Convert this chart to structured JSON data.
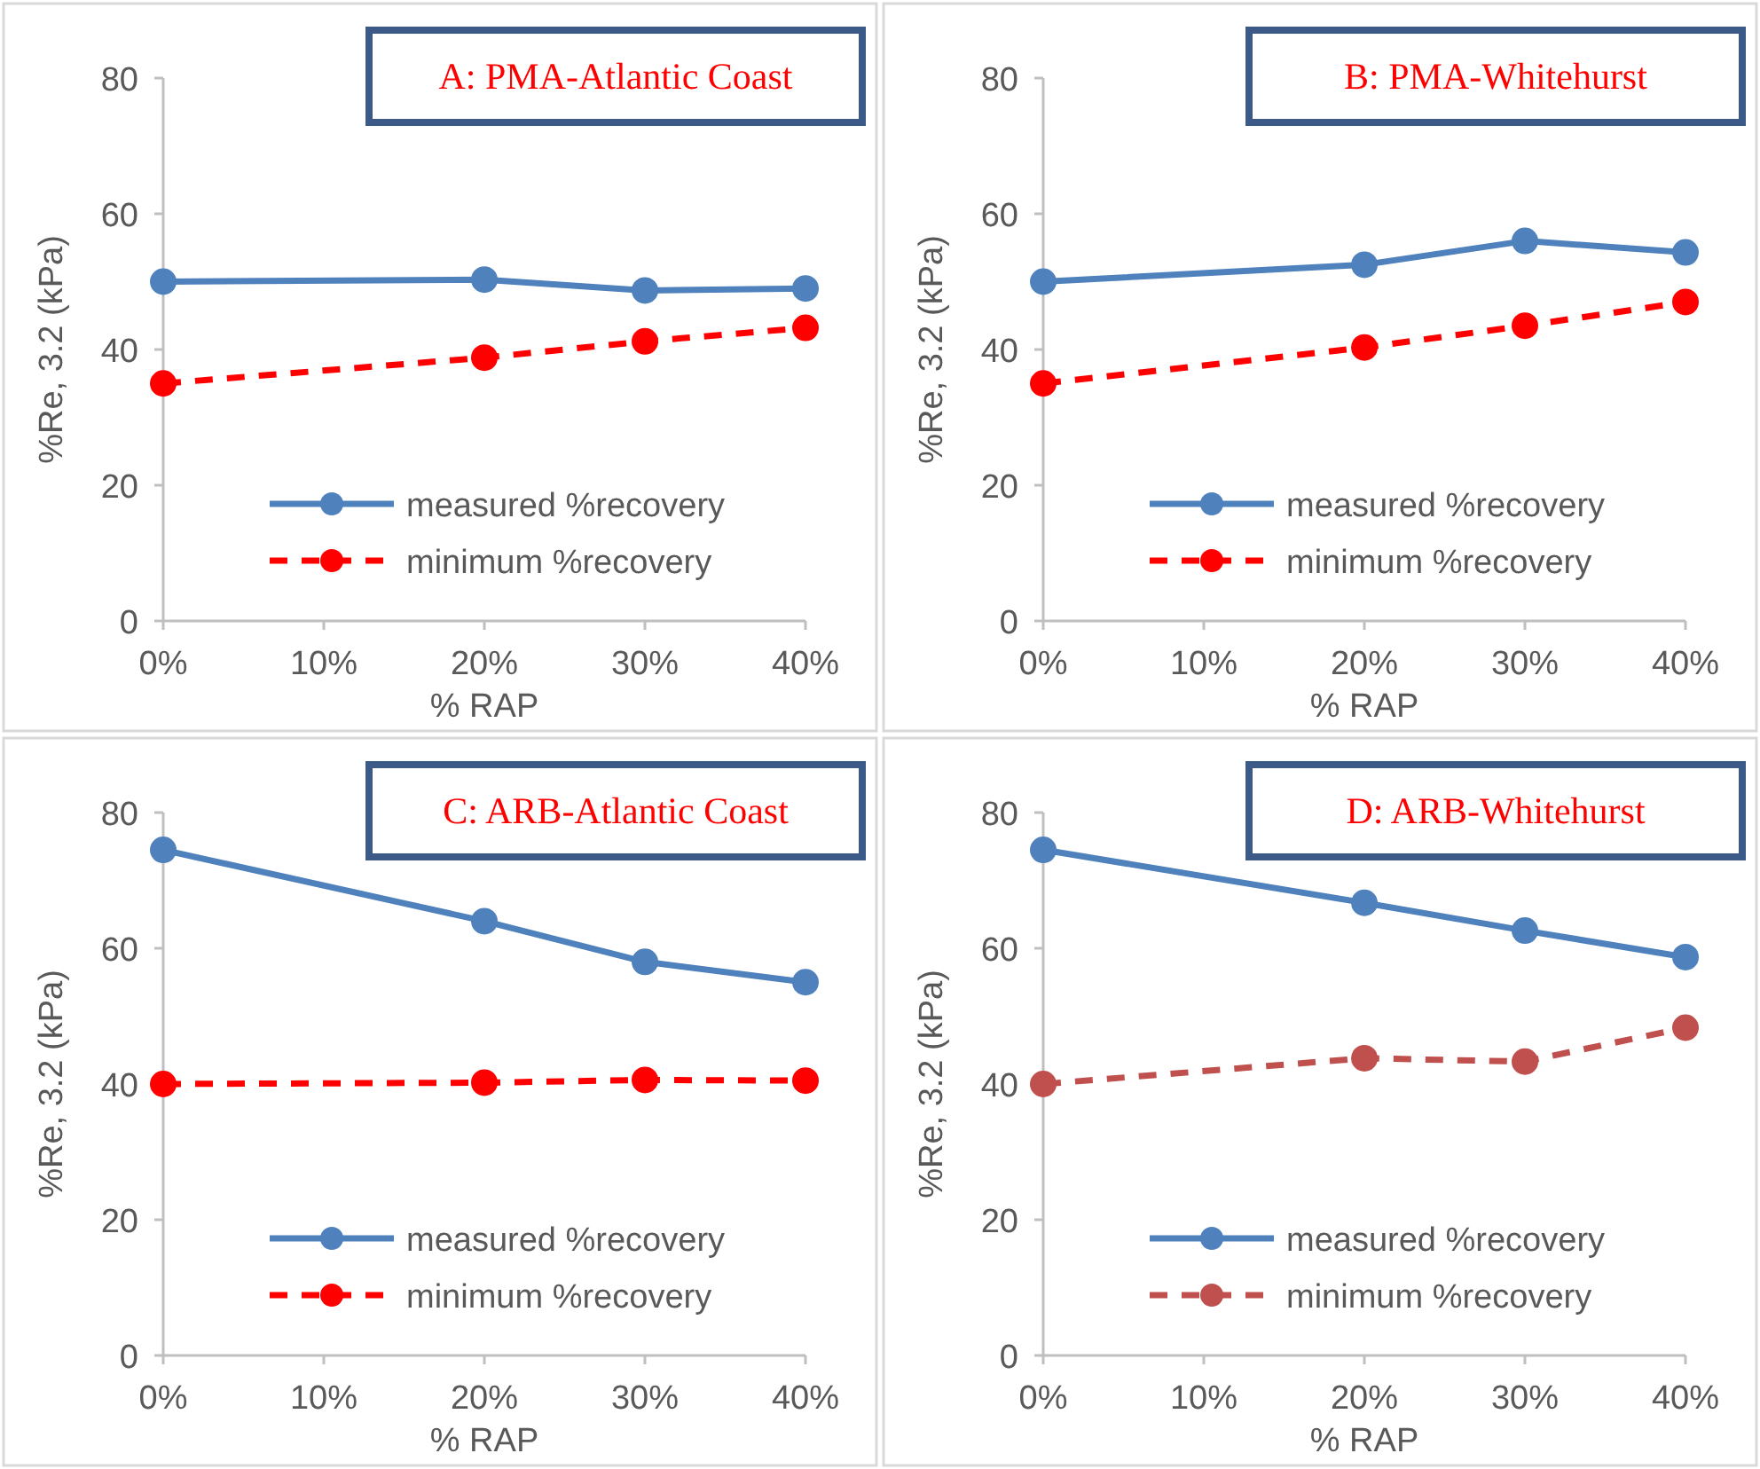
{
  "chart_data": [
    {
      "type": "line",
      "title": "A: PMA-Atlantic Coast",
      "xlabel": "% RAP",
      "ylabel": "%Re, 3.2 (kPa)",
      "x": [
        0,
        20,
        30,
        40
      ],
      "xlim": [
        0,
        40
      ],
      "xticks": [
        {
          "value": 0,
          "label": "0%"
        },
        {
          "value": 10,
          "label": "10%"
        },
        {
          "value": 20,
          "label": "20%"
        },
        {
          "value": 30,
          "label": "30%"
        },
        {
          "value": 40,
          "label": "40%"
        }
      ],
      "ylim": [
        0,
        80
      ],
      "yticks": [
        0,
        20,
        40,
        60,
        80
      ],
      "marker": "circle",
      "legend": "bottom right",
      "series": [
        {
          "name": "measured %recovery",
          "color": "#4f81bd",
          "line_style": "solid",
          "values": [
            50,
            50.3,
            48.7,
            49
          ]
        },
        {
          "name": "minimum %recovery",
          "color": "#ff0000",
          "line_style": "dashed",
          "values": [
            35,
            38.8,
            41.2,
            43.2
          ]
        }
      ]
    },
    {
      "type": "line",
      "title": "B: PMA-Whitehurst",
      "xlabel": "% RAP",
      "ylabel": "%Re, 3.2 (kPa)",
      "x": [
        0,
        20,
        30,
        40
      ],
      "xlim": [
        0,
        40
      ],
      "xticks": [
        {
          "value": 0,
          "label": "0%"
        },
        {
          "value": 10,
          "label": "10%"
        },
        {
          "value": 20,
          "label": "20%"
        },
        {
          "value": 30,
          "label": "30%"
        },
        {
          "value": 40,
          "label": "40%"
        }
      ],
      "ylim": [
        0,
        80
      ],
      "yticks": [
        0,
        20,
        40,
        60,
        80
      ],
      "marker": "circle",
      "legend": "bottom right",
      "series": [
        {
          "name": "measured %recovery",
          "color": "#4f81bd",
          "line_style": "solid",
          "values": [
            50,
            52.5,
            56,
            54.3
          ]
        },
        {
          "name": "minimum %recovery",
          "color": "#ff0000",
          "line_style": "dashed",
          "values": [
            35,
            40.3,
            43.5,
            47
          ]
        }
      ]
    },
    {
      "type": "line",
      "title": "C: ARB-Atlantic Coast",
      "xlabel": "% RAP",
      "ylabel": "%Re, 3.2 (kPa)",
      "x": [
        0,
        20,
        30,
        40
      ],
      "xlim": [
        0,
        40
      ],
      "xticks": [
        {
          "value": 0,
          "label": "0%"
        },
        {
          "value": 10,
          "label": "10%"
        },
        {
          "value": 20,
          "label": "20%"
        },
        {
          "value": 30,
          "label": "30%"
        },
        {
          "value": 40,
          "label": "40%"
        }
      ],
      "ylim": [
        0,
        80
      ],
      "yticks": [
        0,
        20,
        40,
        60,
        80
      ],
      "marker": "circle",
      "legend": "bottom right",
      "series": [
        {
          "name": "measured %recovery",
          "color": "#4f81bd",
          "line_style": "solid",
          "values": [
            74.5,
            64,
            58,
            55
          ]
        },
        {
          "name": "minimum %recovery",
          "color": "#ff0000",
          "line_style": "dashed",
          "values": [
            40,
            40.2,
            40.6,
            40.5
          ]
        }
      ]
    },
    {
      "type": "line",
      "title": "D: ARB-Whitehurst",
      "xlabel": "% RAP",
      "ylabel": "%Re, 3.2 (kPa)",
      "x": [
        0,
        20,
        30,
        40
      ],
      "xlim": [
        0,
        40
      ],
      "xticks": [
        {
          "value": 0,
          "label": "0%"
        },
        {
          "value": 10,
          "label": "10%"
        },
        {
          "value": 20,
          "label": "20%"
        },
        {
          "value": 30,
          "label": "30%"
        },
        {
          "value": 40,
          "label": "40%"
        }
      ],
      "ylim": [
        0,
        80
      ],
      "yticks": [
        0,
        20,
        40,
        60,
        80
      ],
      "marker": "circle",
      "legend": "bottom right",
      "series": [
        {
          "name": "measured %recovery",
          "color": "#4f81bd",
          "line_style": "solid",
          "values": [
            74.5,
            66.7,
            62.6,
            58.7
          ]
        },
        {
          "name": "minimum %recovery",
          "color": "#c0504d",
          "line_style": "dashed",
          "values": [
            40,
            43.8,
            43.3,
            48.3
          ]
        }
      ]
    }
  ]
}
